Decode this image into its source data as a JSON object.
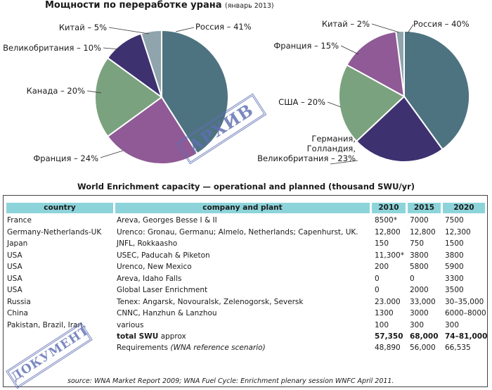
{
  "title": "Мощности по переработке урана",
  "title_date": "(январь 2013)",
  "chart_data": [
    {
      "type": "pie",
      "slices": [
        {
          "label": "Россия – 41%",
          "value": 41,
          "color": "#4e7380"
        },
        {
          "label": "Франция – 24%",
          "value": 24,
          "color": "#8f5a95"
        },
        {
          "label": "Канада – 20%",
          "value": 20,
          "color": "#7ba27e"
        },
        {
          "label": "Великобритания – 10%",
          "value": 10,
          "color": "#3d3170"
        },
        {
          "label": "Китай – 5%",
          "value": 5,
          "color": "#8fa4ac"
        }
      ]
    },
    {
      "type": "pie",
      "slices": [
        {
          "label": "Россия – 40%",
          "value": 40,
          "color": "#4e7380"
        },
        {
          "label": "Германия, Голландия, Великобритания – 23%",
          "label_lines": [
            "Германия,",
            "Голландия,",
            "Великобритания – 23%"
          ],
          "value": 23,
          "color": "#3d3170"
        },
        {
          "label": "США – 20%",
          "value": 20,
          "color": "#7ba27e"
        },
        {
          "label": "Франция – 15%",
          "value": 15,
          "color": "#8f5a95"
        },
        {
          "label": "Китай – 2%",
          "value": 2,
          "color": "#8fa4ac"
        }
      ]
    },
    {
      "type": "table",
      "title": "World Enrichment capacity — operational and planned (thousand SWU/yr)",
      "columns": [
        "country",
        "company and plant",
        "2010",
        "2015",
        "2020"
      ],
      "rows": [
        [
          "France",
          "Areva, Georges Besse I & II",
          "8500*",
          "7000",
          "7500"
        ],
        [
          "Germany-Netherlands-UK",
          "Urenco: Gronau, Germanu; Almelo, Netherlands; Capenhurst, UK.",
          "12,800",
          "12,800",
          "12,300"
        ],
        [
          "Japan",
          "JNFL, Rokkaasho",
          "150",
          "750",
          "1500"
        ],
        [
          "USA",
          "USEC, Paducah & Piketon",
          "11,300*",
          "3800",
          "3800"
        ],
        [
          "USA",
          "Urenco, New Mexico",
          "200",
          "5800",
          "5900"
        ],
        [
          "USA",
          "Areva, Idaho Falls",
          "0",
          "0",
          "3300"
        ],
        [
          "USA",
          "Global Laser Enrichment",
          "0",
          "2000",
          "3500"
        ],
        [
          "Russia",
          "Tenex: Angarsk, Novouralsk, Zelenogorsk, Seversk",
          "23.000",
          "33,000",
          "30–35,000"
        ],
        [
          "China",
          "CNNC, Hanzhun & Lanzhou",
          "1300",
          "3000",
          "6000–8000"
        ],
        [
          "Pakistan, Brazil, Iran",
          "various",
          "100",
          "300",
          "300"
        ]
      ],
      "total": {
        "label_bold": "total SWU",
        "label_rest": " approx",
        "v2010": "57,350",
        "v2015": "68,000",
        "v2020": "74–81,000"
      },
      "requirements": {
        "label": "Requirements ",
        "note": "(WNA reference scenario)",
        "v2010": "48,890",
        "v2015": "56,000",
        "v2020": "66,535"
      },
      "source": "source: WNA Market Report 2009; WNA Fuel Cycle: Enrichment plenary session WNFC April 2011."
    }
  ],
  "stamps": {
    "archive": "АРХИВ",
    "document": "ДОКУМЕНТ"
  }
}
